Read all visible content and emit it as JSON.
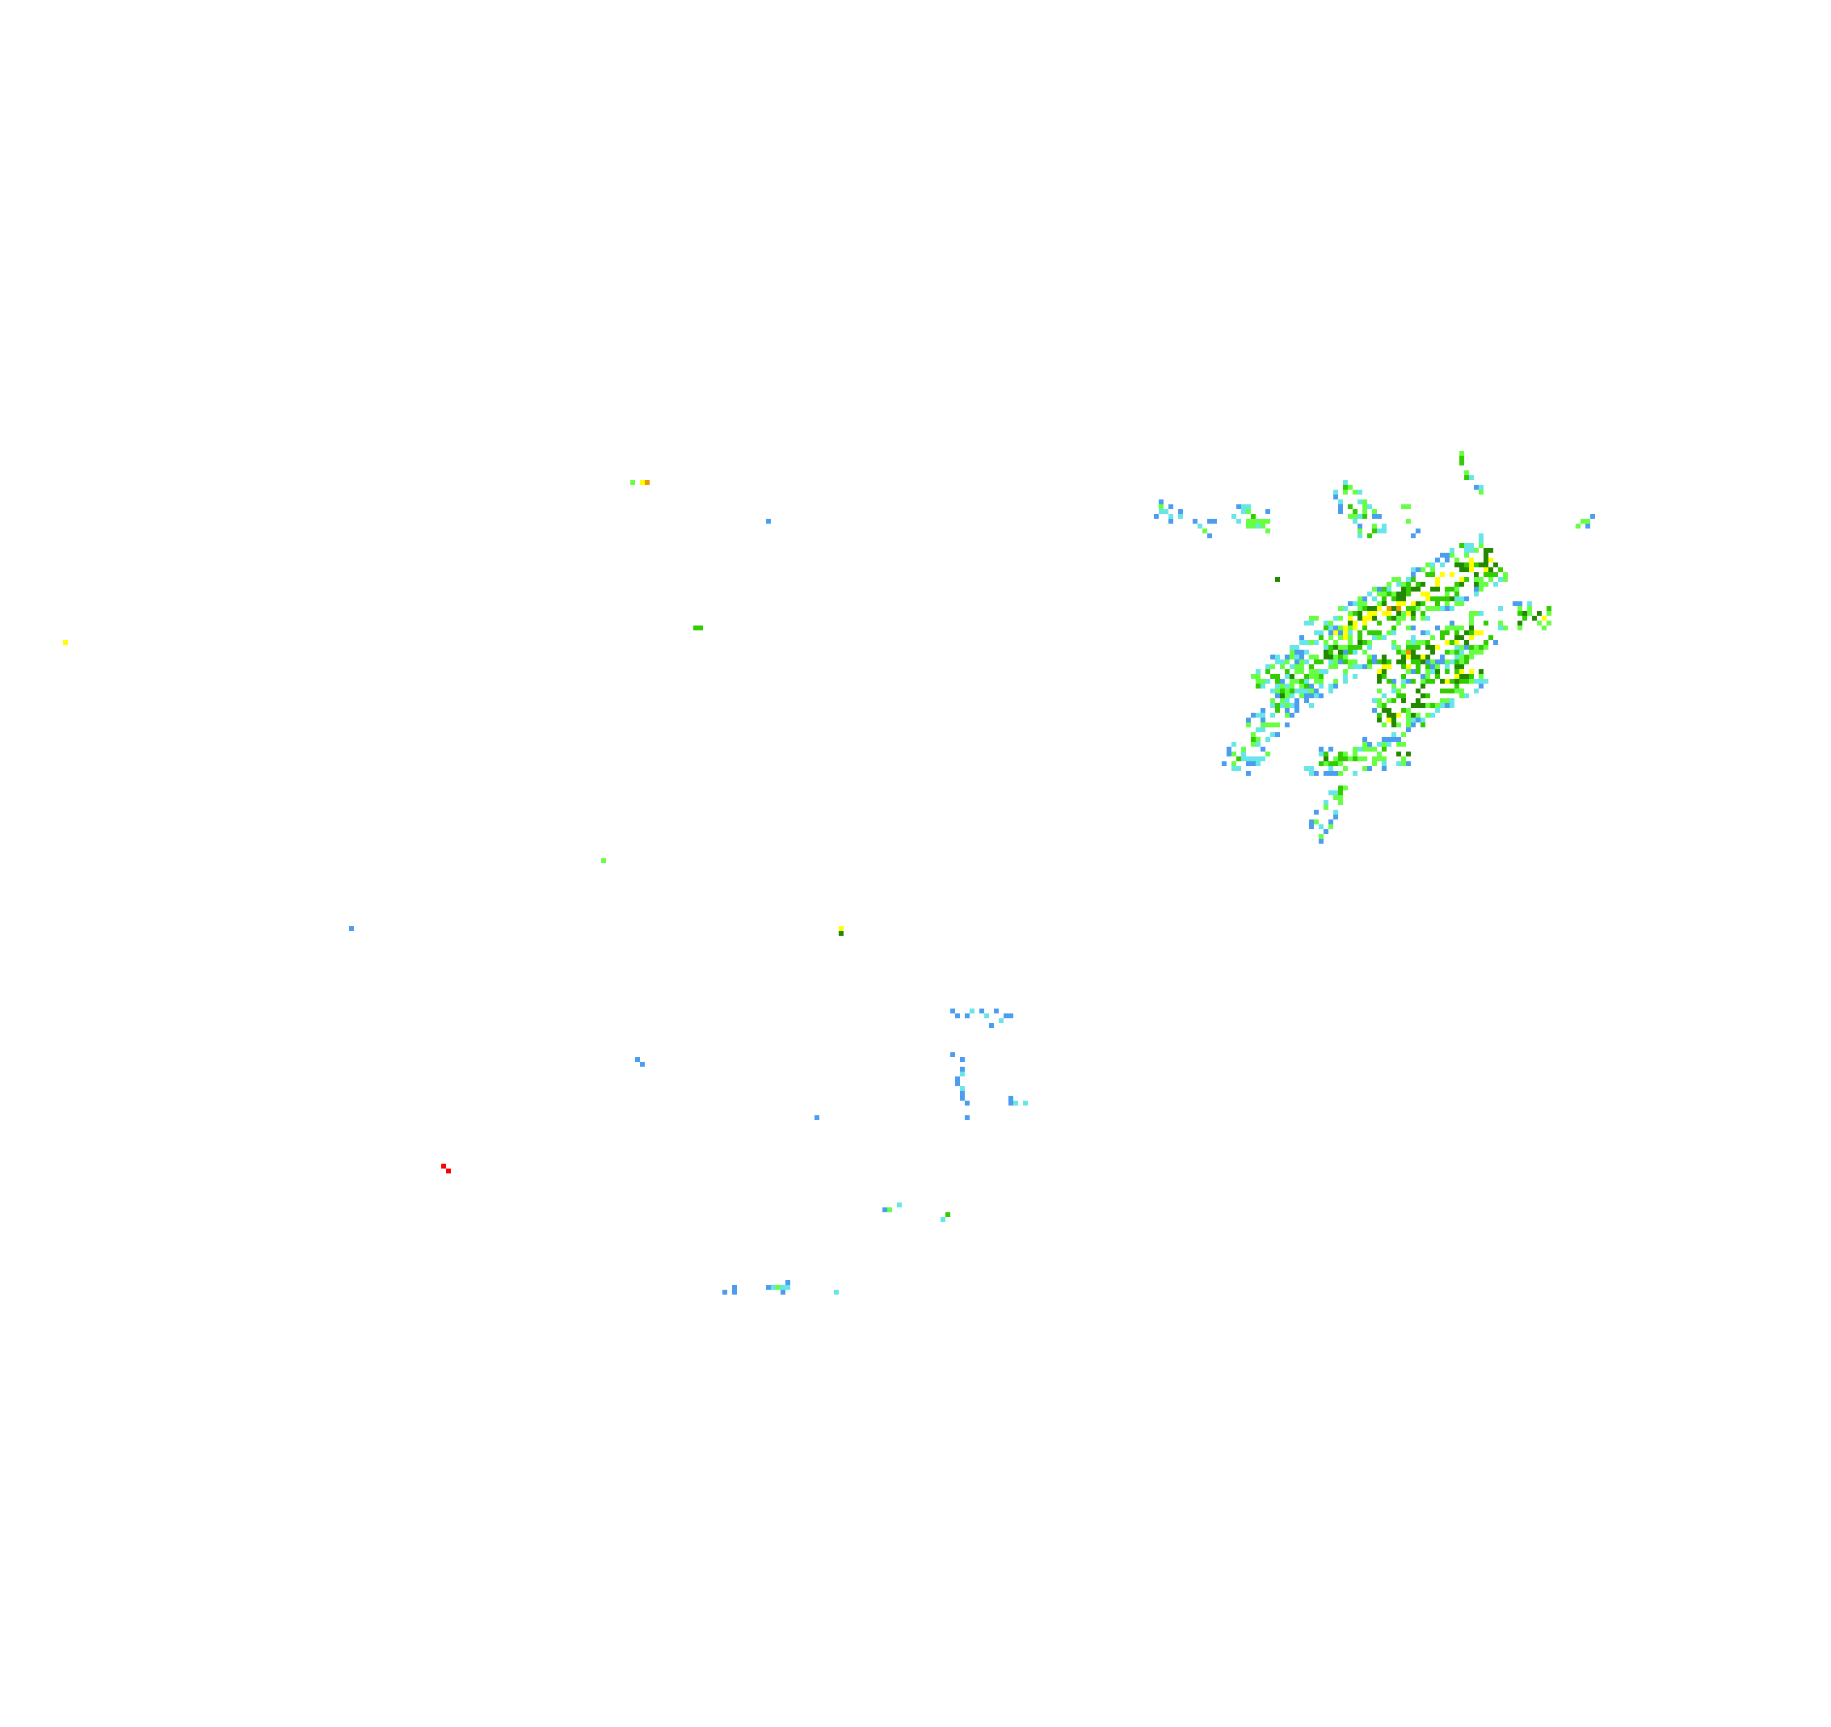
{
  "map": {
    "type": "radar-reflectivity-overlay",
    "background": "#ffffff",
    "palette": {
      "light_blue": "#4c9cf0",
      "cyan": "#66e6e6",
      "light_green": "#66ff44",
      "green": "#33cc00",
      "dark_green": "#228800",
      "yellow": "#ffff00",
      "orange": "#e69a00",
      "red": "#ff0000"
    }
  }
}
